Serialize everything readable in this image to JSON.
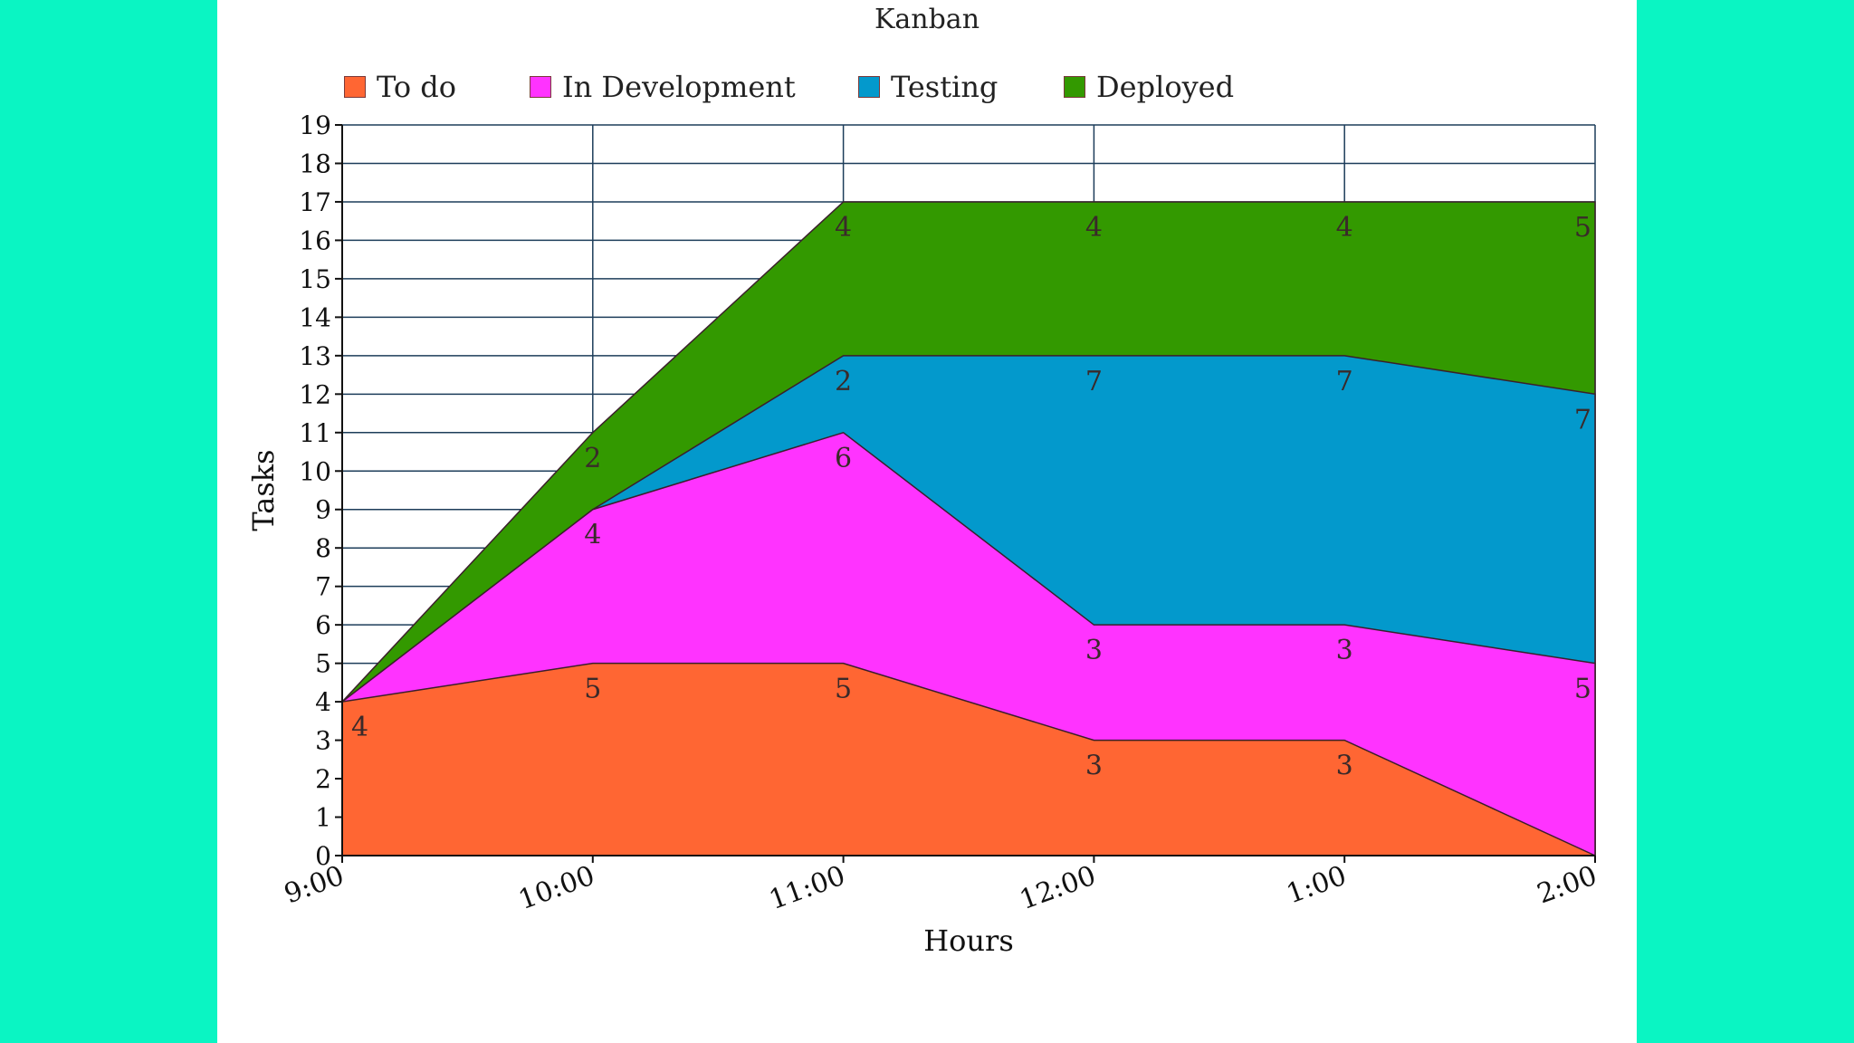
{
  "chart_data": {
    "type": "area",
    "stacked": true,
    "title": "Kanban",
    "xlabel": "Hours",
    "ylabel": "Tasks",
    "ylim": [
      0,
      19
    ],
    "x": [
      "9:00",
      "10:00",
      "11:00",
      "12:00",
      "1:00",
      "2:00"
    ],
    "yticks": [
      "0",
      "1",
      "2",
      "3",
      "4",
      "5",
      "6",
      "7",
      "8",
      "9",
      "10",
      "11",
      "12",
      "13",
      "14",
      "15",
      "16",
      "17",
      "18",
      "19"
    ],
    "series": [
      {
        "name": "To do",
        "color": "#ff6633",
        "values": [
          4,
          5,
          5,
          3,
          3,
          0
        ],
        "labels": [
          "4",
          "5",
          "5",
          "3",
          "3",
          ""
        ]
      },
      {
        "name": "In Development",
        "color": "#ff33ff",
        "values": [
          0,
          4,
          6,
          3,
          3,
          5
        ],
        "labels": [
          "",
          "4",
          "6",
          "3",
          "3",
          "5"
        ]
      },
      {
        "name": "Testing",
        "color": "#0399cc",
        "values": [
          0,
          0,
          2,
          7,
          7,
          7
        ],
        "labels": [
          "",
          "",
          "2",
          "7",
          "7",
          "7"
        ]
      },
      {
        "name": "Deployed",
        "color": "#339900",
        "values": [
          0,
          2,
          4,
          4,
          4,
          5
        ],
        "labels": [
          "",
          "2",
          "4",
          "4",
          "4",
          "5"
        ]
      }
    ],
    "legend": "top",
    "grid": true
  }
}
